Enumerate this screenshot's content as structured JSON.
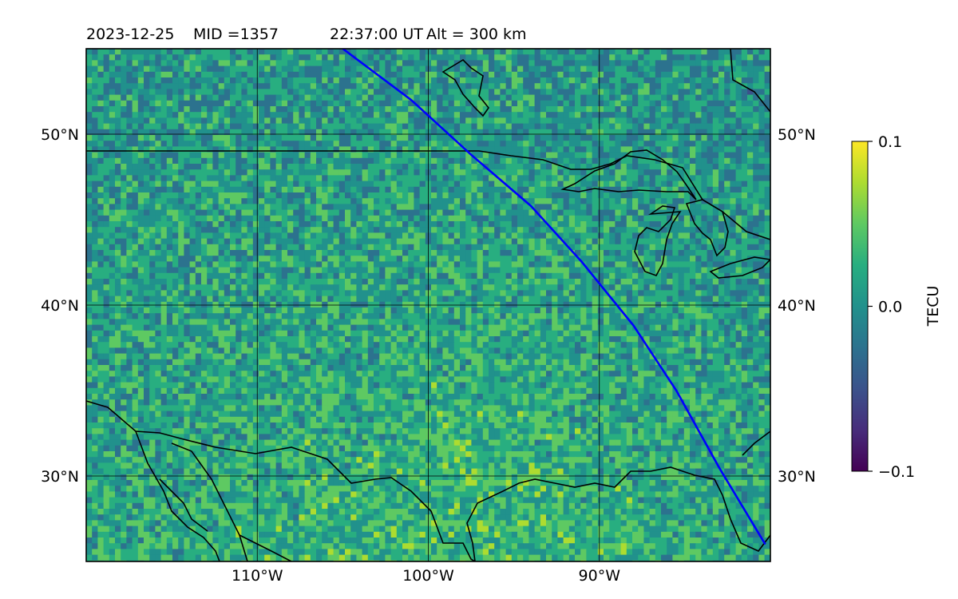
{
  "header": {
    "date": "2023-12-25",
    "mid": "MID =1357",
    "time": "22:37:00  UT",
    "altitude": "Alt = 300 km"
  },
  "map": {
    "lon_range": [
      -120,
      -80
    ],
    "lat_range": [
      25,
      55
    ],
    "lon_ticks": [
      {
        "value": -110,
        "label": "110°W"
      },
      {
        "value": -100,
        "label": "100°W"
      },
      {
        "value": -90,
        "label": "90°W"
      }
    ],
    "lat_ticks": [
      {
        "value": 50,
        "label": "50°N"
      },
      {
        "value": 40,
        "label": "40°N"
      },
      {
        "value": 30,
        "label": "30°N"
      }
    ],
    "gridlines": true,
    "colors": {
      "coastline": "#000000",
      "track": "#0000ff",
      "grid": "#000000"
    },
    "satellite_track": [
      [
        -105.0,
        55.0
      ],
      [
        -101.0,
        52.0
      ],
      [
        -97.5,
        48.8
      ],
      [
        -94.0,
        45.8
      ],
      [
        -91.0,
        42.5
      ],
      [
        -88.0,
        38.8
      ],
      [
        -85.5,
        35.0
      ],
      [
        -83.0,
        30.5
      ],
      [
        -80.3,
        26.0
      ]
    ]
  },
  "colorbar": {
    "label": "TECU",
    "min": -0.1,
    "max": 0.1,
    "colormap": "viridis",
    "ticks": [
      {
        "value": 0.1,
        "label": "0.1"
      },
      {
        "value": 0.0,
        "label": "0.0"
      },
      {
        "value": -0.1,
        "label": "−0.1"
      }
    ]
  }
}
